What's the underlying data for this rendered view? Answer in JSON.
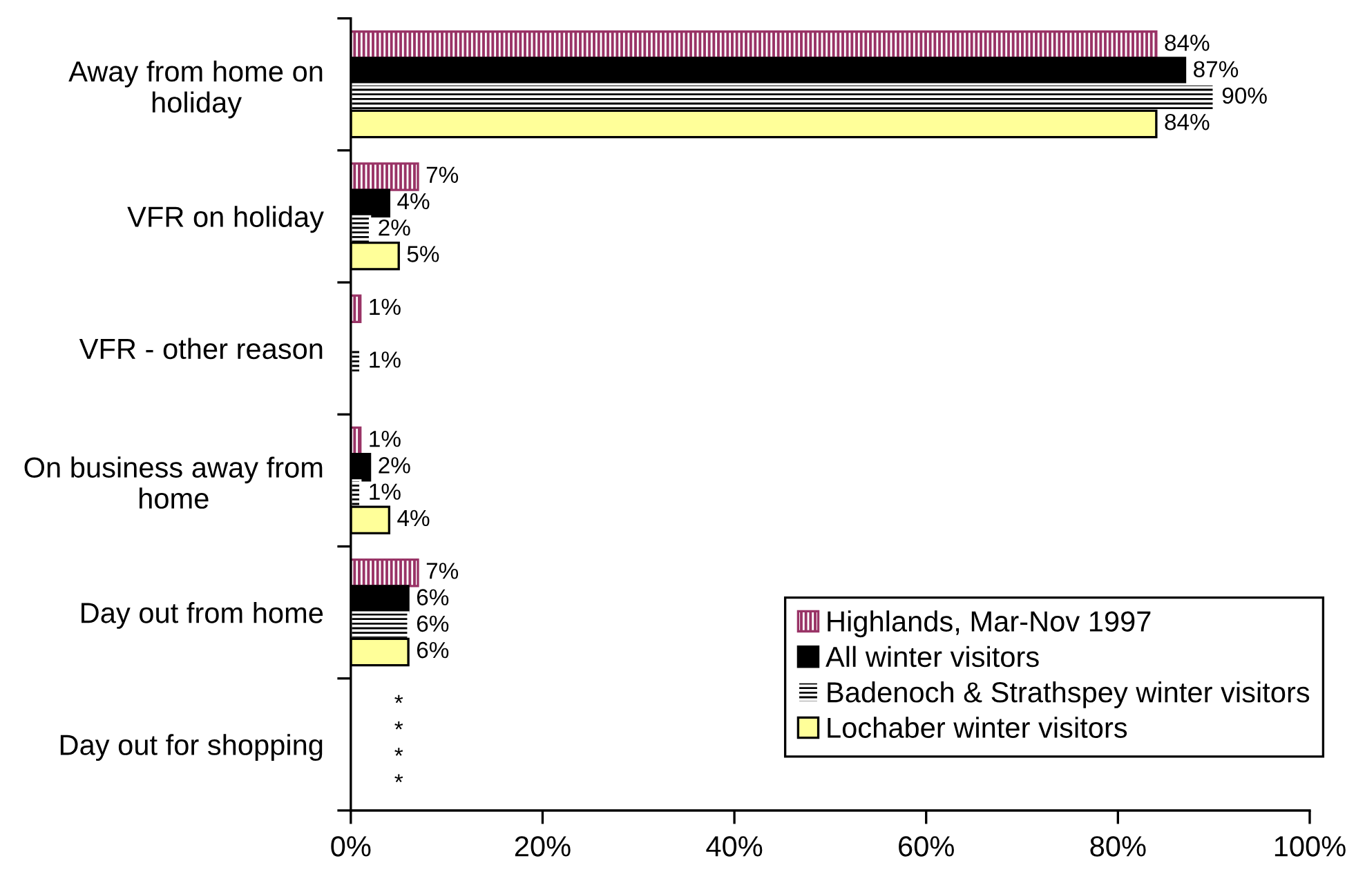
{
  "chart_data": {
    "type": "bar",
    "orientation": "horizontal",
    "categories": [
      "Away from home on\nholiday",
      "VFR on holiday",
      "VFR - other reason",
      "On business away from\nhome",
      "Day out from home",
      "Day out for shopping"
    ],
    "series": [
      {
        "name": "Highlands, Mar-Nov 1997",
        "color": "#993366",
        "values": [
          84,
          7,
          1,
          1,
          7,
          null
        ],
        "value_labels": [
          "84%",
          "7%",
          "1%",
          "1%",
          "7%",
          null
        ]
      },
      {
        "name": "All winter visitors",
        "color": "#000000",
        "values": [
          87,
          4,
          null,
          2,
          6,
          null
        ],
        "value_labels": [
          "87%",
          "4%",
          null,
          "2%",
          "6%",
          null
        ]
      },
      {
        "name": "Badenoch & Strathspey winter visitors",
        "color": "#ffffff",
        "values": [
          90,
          2,
          1,
          1,
          6,
          null
        ],
        "value_labels": [
          "90%",
          "2%",
          "1%",
          "1%",
          "6%",
          null
        ]
      },
      {
        "name": "Lochaber winter visitors",
        "color": "#ffff99",
        "values": [
          84,
          5,
          null,
          4,
          6,
          null
        ],
        "value_labels": [
          "84%",
          "5%",
          null,
          "4%",
          "6%",
          null
        ]
      }
    ],
    "annotations": [
      "*",
      "*",
      "*",
      "*"
    ],
    "xlim": [
      0,
      100
    ],
    "xticks": [
      {
        "value": 0,
        "label": "0%"
      },
      {
        "value": 20,
        "label": "20%"
      },
      {
        "value": 40,
        "label": "40%"
      },
      {
        "value": 60,
        "label": "60%"
      },
      {
        "value": 80,
        "label": "80%"
      },
      {
        "value": 100,
        "label": "100%"
      }
    ],
    "legend": "bottom right",
    "grid": false
  }
}
